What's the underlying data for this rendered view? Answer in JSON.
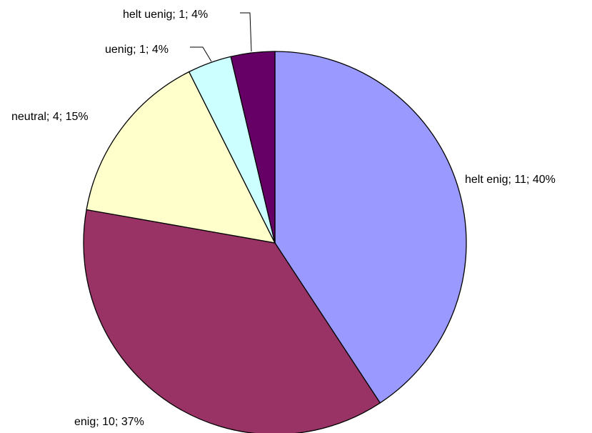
{
  "chart_data": {
    "type": "pie",
    "title": "",
    "slices": [
      {
        "label": "helt enig",
        "value": 11,
        "percent": 40,
        "color": "#9999ff",
        "display": "helt enig; 11; 40%"
      },
      {
        "label": "enig",
        "value": 10,
        "percent": 37,
        "color": "#993366",
        "display": "enig; 10; 37%"
      },
      {
        "label": "neutral",
        "value": 4,
        "percent": 15,
        "color": "#ffffcc",
        "display": "neutral; 4; 15%"
      },
      {
        "label": "uenig",
        "value": 1,
        "percent": 4,
        "color": "#ccffff",
        "display": "uenig; 1; 4%"
      },
      {
        "label": "helt uenig",
        "value": 1,
        "percent": 4,
        "color": "#660066",
        "display": "helt uenig; 1; 4%"
      }
    ],
    "legend": "none"
  }
}
